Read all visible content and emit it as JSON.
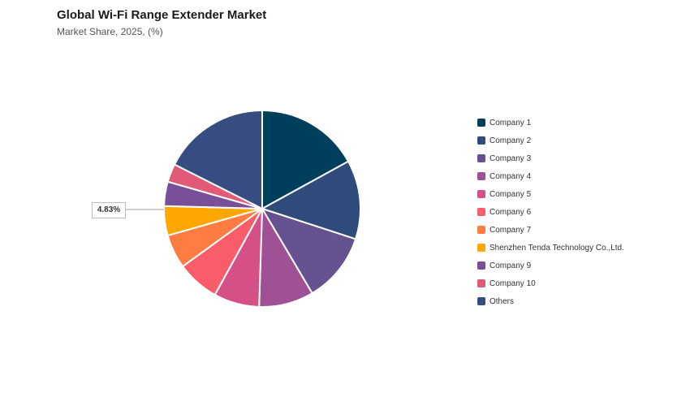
{
  "header": {
    "title": "Global Wi-Fi Range Extender Market",
    "subtitle": "Market Share, 2025, (%)"
  },
  "chart_data": {
    "type": "pie",
    "title": "Global Wi-Fi Range Extender Market",
    "subtitle": "Market Share, 2025, (%)",
    "unit": "%",
    "legend_position": "right",
    "slices": [
      {
        "name": "Company 1",
        "value": 17.0,
        "color": "#003f5c"
      },
      {
        "name": "Company 2",
        "value": 13.0,
        "color": "#2f4b7c"
      },
      {
        "name": "Company 3",
        "value": 11.5,
        "color": "#665191"
      },
      {
        "name": "Company 4",
        "value": 9.0,
        "color": "#a05195"
      },
      {
        "name": "Company 5",
        "value": 7.5,
        "color": "#d45087"
      },
      {
        "name": "Company 6",
        "value": 7.0,
        "color": "#f95d6a"
      },
      {
        "name": "Company 7",
        "value": 5.6,
        "color": "#ff7c43"
      },
      {
        "name": "Shenzhen Tenda Technology Co.,Ltd.",
        "value": 4.83,
        "color": "#ffa600"
      },
      {
        "name": "Company 9",
        "value": 4.0,
        "color": "#7a4f9a"
      },
      {
        "name": "Company 10",
        "value": 3.0,
        "color": "#e15a78"
      },
      {
        "name": "Others",
        "value": 17.57,
        "color": "#374c80"
      }
    ],
    "data_labels": [
      {
        "slice": "Shenzhen Tenda Technology Co.,Ltd.",
        "text": "4.83%"
      }
    ]
  }
}
